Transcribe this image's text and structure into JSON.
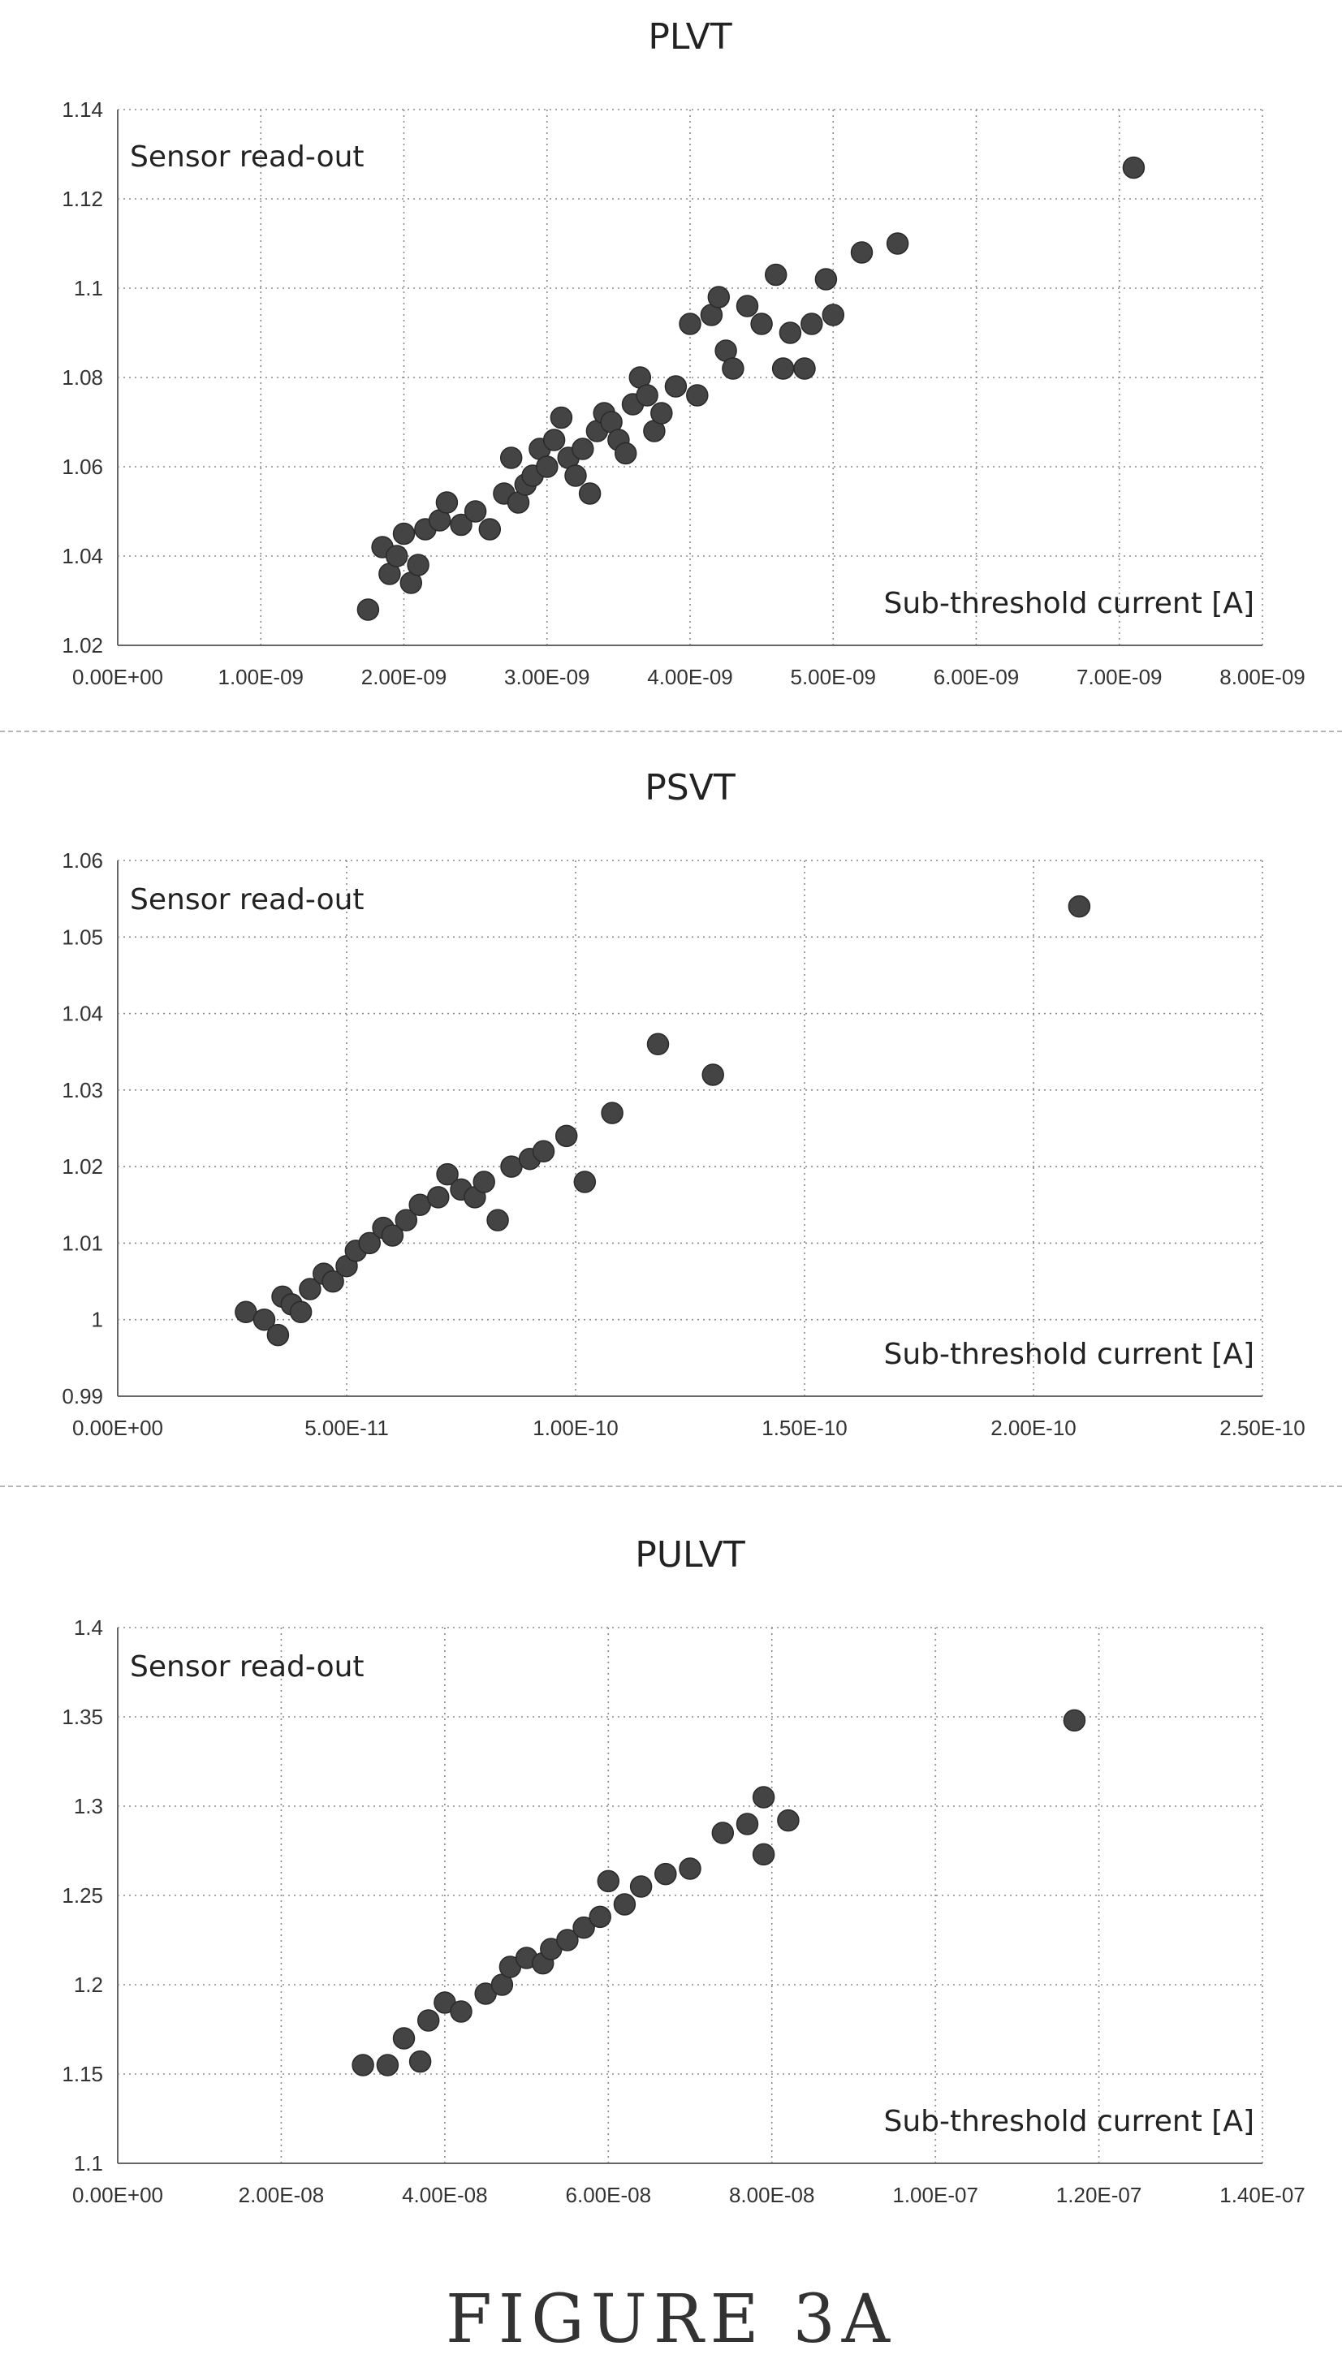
{
  "caption": "FIGURE 3A",
  "chart_data": [
    {
      "type": "scatter",
      "title": "PLVT",
      "annotation_y": "Sensor read-out",
      "annotation_x": "Sub-threshold current [A]",
      "xlim": [
        0,
        8e-09
      ],
      "ylim": [
        1.02,
        1.14
      ],
      "x_ticks": [
        "0.00E+00",
        "1.00E-09",
        "2.00E-09",
        "3.00E-09",
        "4.00E-09",
        "5.00E-09",
        "6.00E-09",
        "7.00E-09",
        "8.00E-09"
      ],
      "y_ticks": [
        "1.02",
        "1.04",
        "1.06",
        "1.08",
        "1.1",
        "1.12",
        "1.14"
      ],
      "grid": true,
      "series": [
        {
          "points": [
            [
              1.75e-09,
              1.028
            ],
            [
              1.85e-09,
              1.042
            ],
            [
              1.9e-09,
              1.036
            ],
            [
              1.95e-09,
              1.04
            ],
            [
              2e-09,
              1.045
            ],
            [
              2.05e-09,
              1.034
            ],
            [
              2.1e-09,
              1.038
            ],
            [
              2.15e-09,
              1.046
            ],
            [
              2.25e-09,
              1.048
            ],
            [
              2.3e-09,
              1.052
            ],
            [
              2.4e-09,
              1.047
            ],
            [
              2.5e-09,
              1.05
            ],
            [
              2.6e-09,
              1.046
            ],
            [
              2.7e-09,
              1.054
            ],
            [
              2.75e-09,
              1.062
            ],
            [
              2.8e-09,
              1.052
            ],
            [
              2.85e-09,
              1.056
            ],
            [
              2.9e-09,
              1.058
            ],
            [
              2.95e-09,
              1.064
            ],
            [
              3e-09,
              1.06
            ],
            [
              3.05e-09,
              1.066
            ],
            [
              3.1e-09,
              1.071
            ],
            [
              3.15e-09,
              1.062
            ],
            [
              3.2e-09,
              1.058
            ],
            [
              3.25e-09,
              1.064
            ],
            [
              3.3e-09,
              1.054
            ],
            [
              3.35e-09,
              1.068
            ],
            [
              3.4e-09,
              1.072
            ],
            [
              3.45e-09,
              1.07
            ],
            [
              3.5e-09,
              1.066
            ],
            [
              3.55e-09,
              1.063
            ],
            [
              3.6e-09,
              1.074
            ],
            [
              3.65e-09,
              1.08
            ],
            [
              3.7e-09,
              1.076
            ],
            [
              3.75e-09,
              1.068
            ],
            [
              3.8e-09,
              1.072
            ],
            [
              3.9e-09,
              1.078
            ],
            [
              4e-09,
              1.092
            ],
            [
              4.05e-09,
              1.076
            ],
            [
              4.15e-09,
              1.094
            ],
            [
              4.2e-09,
              1.098
            ],
            [
              4.25e-09,
              1.086
            ],
            [
              4.3e-09,
              1.082
            ],
            [
              4.4e-09,
              1.096
            ],
            [
              4.5e-09,
              1.092
            ],
            [
              4.6e-09,
              1.103
            ],
            [
              4.65e-09,
              1.082
            ],
            [
              4.7e-09,
              1.09
            ],
            [
              4.8e-09,
              1.082
            ],
            [
              4.85e-09,
              1.092
            ],
            [
              4.95e-09,
              1.102
            ],
            [
              5e-09,
              1.094
            ],
            [
              5.2e-09,
              1.108
            ],
            [
              5.45e-09,
              1.11
            ],
            [
              7.1e-09,
              1.127
            ]
          ]
        }
      ]
    },
    {
      "type": "scatter",
      "title": "PSVT",
      "annotation_y": "Sensor read-out",
      "annotation_x": "Sub-threshold current [A]",
      "xlim": [
        0,
        2.5e-10
      ],
      "ylim": [
        0.99,
        1.06
      ],
      "x_ticks": [
        "0.00E+00",
        "5.00E-11",
        "1.00E-10",
        "1.50E-10",
        "2.00E-10",
        "2.50E-10"
      ],
      "y_ticks": [
        "0.99",
        "1",
        "1.01",
        "1.02",
        "1.03",
        "1.04",
        "1.05",
        "1.06"
      ],
      "grid": true,
      "series": [
        {
          "points": [
            [
              2.8e-11,
              1.001
            ],
            [
              3.2e-11,
              1.0
            ],
            [
              3.5e-11,
              0.998
            ],
            [
              3.6e-11,
              1.003
            ],
            [
              3.8e-11,
              1.002
            ],
            [
              4e-11,
              1.001
            ],
            [
              4.2e-11,
              1.004
            ],
            [
              4.5e-11,
              1.006
            ],
            [
              4.7e-11,
              1.005
            ],
            [
              5e-11,
              1.007
            ],
            [
              5.2e-11,
              1.009
            ],
            [
              5.5e-11,
              1.01
            ],
            [
              5.8e-11,
              1.012
            ],
            [
              6e-11,
              1.011
            ],
            [
              6.3e-11,
              1.013
            ],
            [
              6.6e-11,
              1.015
            ],
            [
              7e-11,
              1.016
            ],
            [
              7.2e-11,
              1.019
            ],
            [
              7.5e-11,
              1.017
            ],
            [
              7.8e-11,
              1.016
            ],
            [
              8e-11,
              1.018
            ],
            [
              8.3e-11,
              1.013
            ],
            [
              8.6e-11,
              1.02
            ],
            [
              9e-11,
              1.021
            ],
            [
              9.3e-11,
              1.022
            ],
            [
              9.8e-11,
              1.024
            ],
            [
              1.02e-10,
              1.018
            ],
            [
              1.08e-10,
              1.027
            ],
            [
              1.18e-10,
              1.036
            ],
            [
              1.3e-10,
              1.032
            ],
            [
              2.1e-10,
              1.054
            ]
          ]
        }
      ]
    },
    {
      "type": "scatter",
      "title": "PULVT",
      "annotation_y": "Sensor read-out",
      "annotation_x": "Sub-threshold current [A]",
      "xlim": [
        0,
        1.4e-07
      ],
      "ylim": [
        1.1,
        1.4
      ],
      "x_ticks": [
        "0.00E+00",
        "2.00E-08",
        "4.00E-08",
        "6.00E-08",
        "8.00E-08",
        "1.00E-07",
        "1.20E-07",
        "1.40E-07"
      ],
      "y_ticks": [
        "1.1",
        "1.15",
        "1.2",
        "1.25",
        "1.3",
        "1.35",
        "1.4"
      ],
      "grid": true,
      "series": [
        {
          "points": [
            [
              3e-08,
              1.155
            ],
            [
              3.3e-08,
              1.155
            ],
            [
              3.5e-08,
              1.17
            ],
            [
              3.7e-08,
              1.157
            ],
            [
              3.8e-08,
              1.18
            ],
            [
              4e-08,
              1.19
            ],
            [
              4.2e-08,
              1.185
            ],
            [
              4.5e-08,
              1.195
            ],
            [
              4.7e-08,
              1.2
            ],
            [
              4.8e-08,
              1.21
            ],
            [
              5e-08,
              1.215
            ],
            [
              5.2e-08,
              1.212
            ],
            [
              5.3e-08,
              1.22
            ],
            [
              5.5e-08,
              1.225
            ],
            [
              5.7e-08,
              1.232
            ],
            [
              5.9e-08,
              1.238
            ],
            [
              6e-08,
              1.258
            ],
            [
              6.2e-08,
              1.245
            ],
            [
              6.4e-08,
              1.255
            ],
            [
              6.7e-08,
              1.262
            ],
            [
              7e-08,
              1.265
            ],
            [
              7.4e-08,
              1.285
            ],
            [
              7.7e-08,
              1.29
            ],
            [
              7.9e-08,
              1.305
            ],
            [
              7.9e-08,
              1.273
            ],
            [
              8.2e-08,
              1.292
            ],
            [
              1.17e-07,
              1.348
            ]
          ]
        }
      ]
    }
  ]
}
